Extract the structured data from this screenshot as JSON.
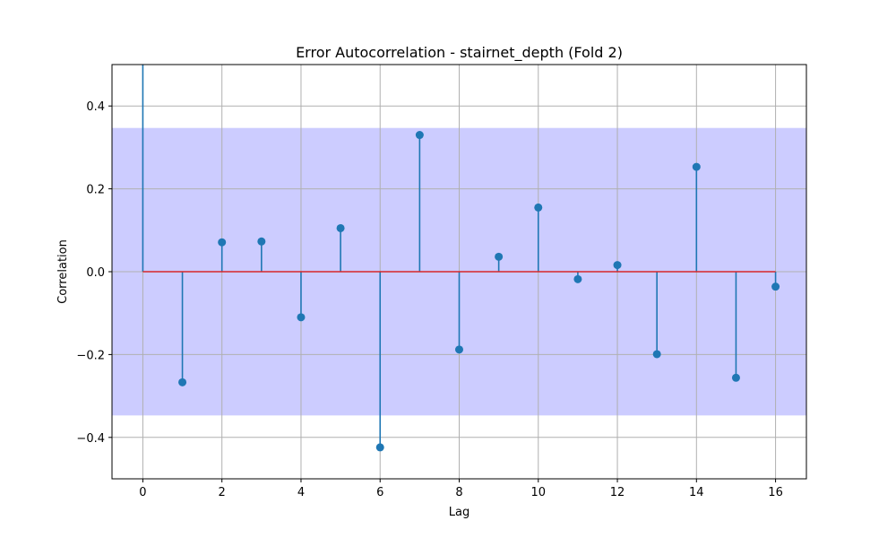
{
  "chart_data": {
    "type": "stem",
    "title": "Error Autocorrelation - stairnet_depth (Fold 2)",
    "xlabel": "Lag",
    "ylabel": "Correlation",
    "xlim": [
      -0.78,
      16.78
    ],
    "ylim": [
      -0.5,
      0.5
    ],
    "x_ticks": [
      0,
      2,
      4,
      6,
      8,
      10,
      12,
      14,
      16
    ],
    "y_ticks": [
      -0.4,
      -0.2,
      0.0,
      0.2,
      0.4
    ],
    "y_tick_labels": [
      "−0.4",
      "−0.2",
      "0.0",
      "0.2",
      "0.4"
    ],
    "grid": true,
    "confidence_band": [
      -0.347,
      0.347
    ],
    "baseline": 0.0,
    "lags": [
      0,
      1,
      2,
      3,
      4,
      5,
      6,
      7,
      8,
      9,
      10,
      11,
      12,
      13,
      14,
      15,
      16
    ],
    "values": [
      1.0,
      -0.267,
      0.071,
      0.073,
      -0.11,
      0.105,
      -0.424,
      0.33,
      -0.188,
      0.036,
      0.155,
      -0.018,
      0.016,
      -0.199,
      0.253,
      -0.256,
      -0.036
    ],
    "colors": {
      "stem": "#1f77b4",
      "marker": "#1f77b4",
      "baseline": "#d62728",
      "band": "#ccccff",
      "grid": "#b0b0b0"
    }
  }
}
